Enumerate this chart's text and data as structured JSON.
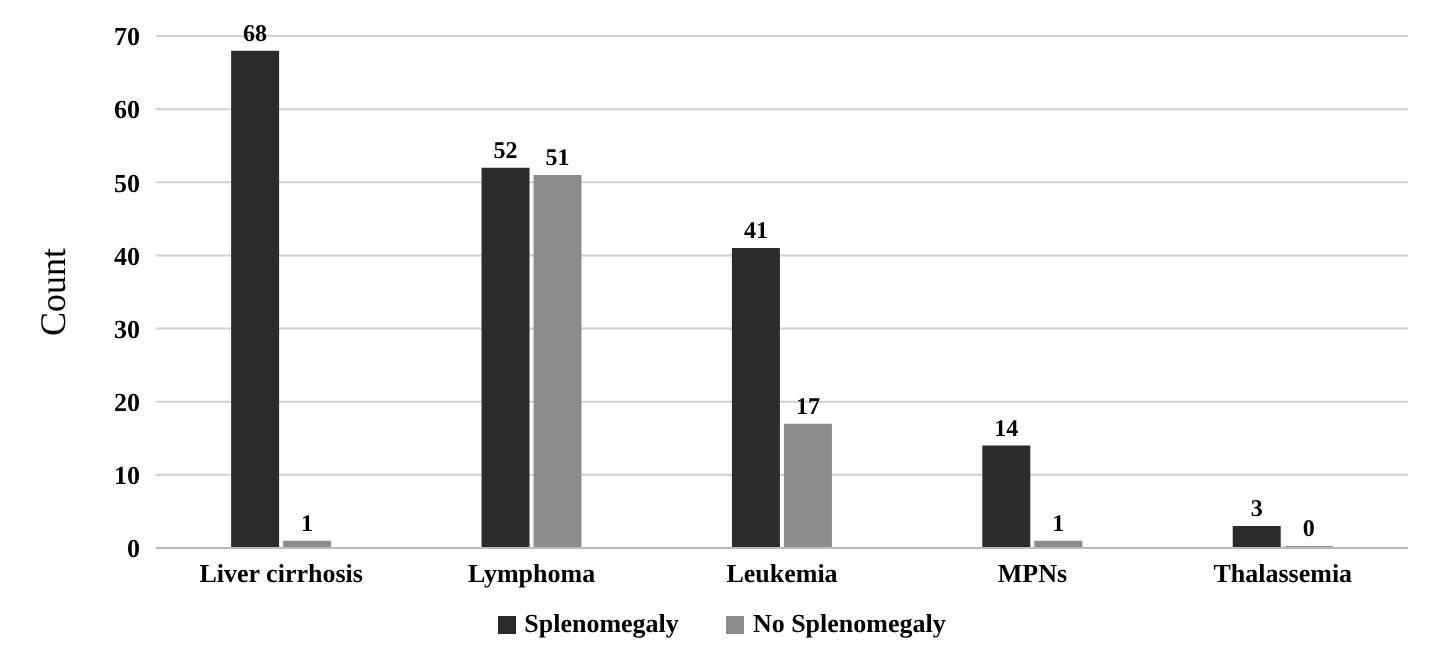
{
  "chart_data": {
    "type": "bar",
    "ylabel": "Count",
    "categories": [
      "Liver cirrhosis",
      "Lymphoma",
      "Leukemia",
      "MPNs",
      "Thalassemia"
    ],
    "series": [
      {
        "name": "Splenomegaly",
        "color": "#2b2b2b",
        "values": [
          68,
          52,
          41,
          14,
          3
        ]
      },
      {
        "name": "No Splenomegaly",
        "color": "#8c8c8c",
        "values": [
          1,
          51,
          17,
          1,
          0
        ]
      }
    ],
    "ylim": [
      0,
      70
    ],
    "yticks": [
      0,
      10,
      20,
      30,
      40,
      50,
      60,
      70
    ],
    "grid": "y",
    "legend": "bottom",
    "data_labels": true
  }
}
